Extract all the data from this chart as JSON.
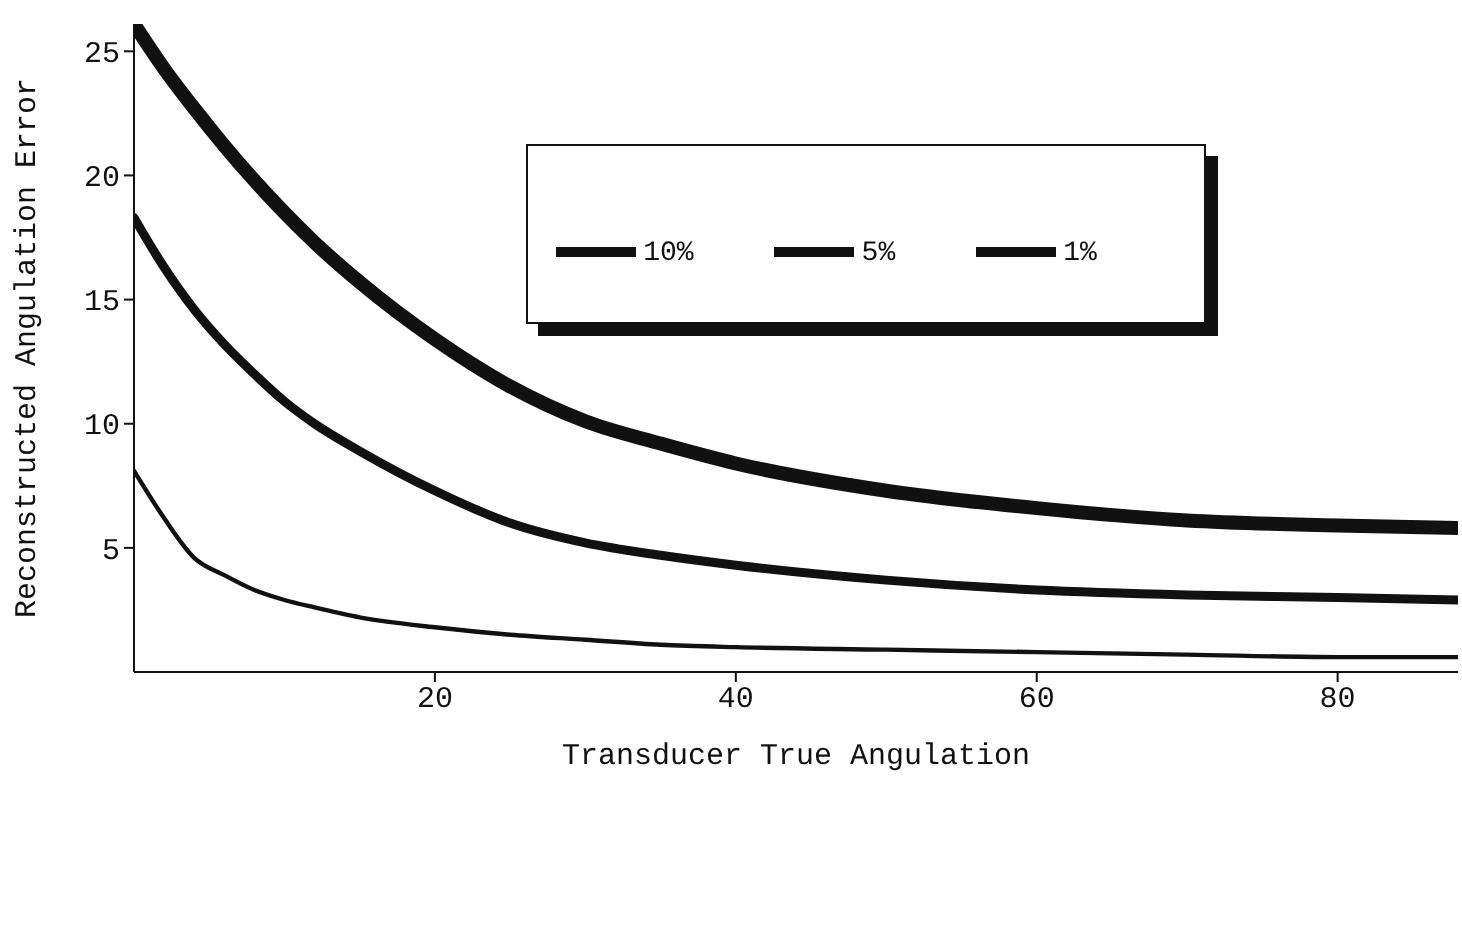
{
  "chart_data": {
    "type": "line",
    "xlabel": "Transducer True Angulation",
    "ylabel": "Reconstructed Angulation Error",
    "x": [
      0,
      2,
      4,
      6,
      8,
      10,
      12,
      15,
      20,
      25,
      30,
      35,
      40,
      50,
      60,
      70,
      80,
      88
    ],
    "series": [
      {
        "name": "10%",
        "color": "#111111",
        "values": [
          26.1,
          24.3,
          22.7,
          21.2,
          19.8,
          18.5,
          17.3,
          15.7,
          13.4,
          11.5,
          10.1,
          9.2,
          8.4,
          7.3,
          6.6,
          6.1,
          5.9,
          5.8
        ]
      },
      {
        "name": "5%",
        "color": "#111111",
        "values": [
          18.3,
          16.3,
          14.6,
          13.2,
          12.0,
          10.9,
          10.0,
          8.9,
          7.3,
          6.0,
          5.2,
          4.7,
          4.3,
          3.7,
          3.3,
          3.1,
          3.0,
          2.9
        ]
      },
      {
        "name": "1%",
        "color": "#111111",
        "values": [
          8.1,
          6.2,
          4.6,
          3.9,
          3.3,
          2.9,
          2.6,
          2.2,
          1.8,
          1.5,
          1.3,
          1.1,
          1.0,
          0.9,
          0.8,
          0.7,
          0.6,
          0.6
        ]
      }
    ],
    "xlim": [
      0,
      88
    ],
    "xticks": [
      20,
      40,
      60,
      80
    ],
    "ylim": [
      0,
      26.1
    ],
    "yticks": [
      5,
      10,
      15,
      20,
      25
    ],
    "grid": false,
    "legend": "top",
    "marker": "none",
    "line_style": "solid"
  }
}
